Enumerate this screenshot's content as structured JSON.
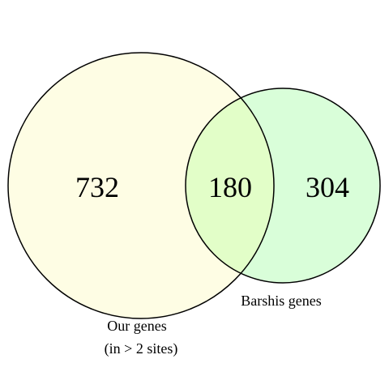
{
  "diagram": {
    "type": "venn",
    "sets": [
      {
        "id": "our",
        "label_line1": "Our genes",
        "label_line2": "(in > 2 sites)",
        "color": "#fefde4"
      },
      {
        "id": "barshis",
        "label": "Barshis genes",
        "color": "#d9fed9"
      }
    ],
    "intersection_color": "#e2fec8",
    "outline_color": "#000000",
    "counts": {
      "only_our": "732",
      "both": "180",
      "only_barshis": "304"
    }
  }
}
